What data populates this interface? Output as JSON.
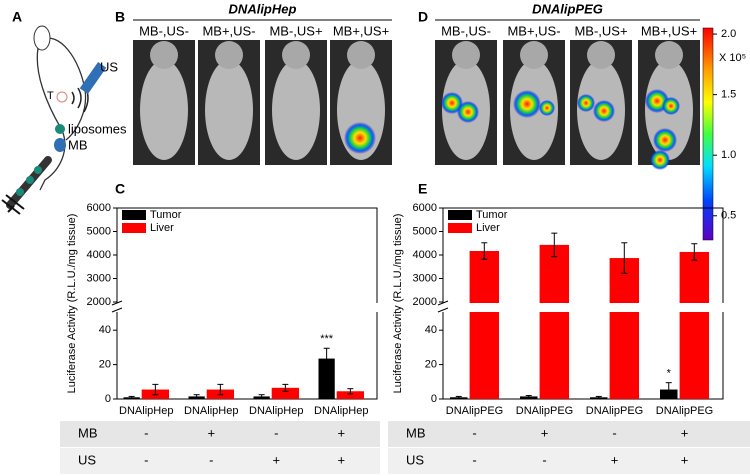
{
  "panel_labels": [
    "A",
    "B",
    "C",
    "D",
    "E"
  ],
  "schematic": {
    "us": "US",
    "tumor": "T",
    "liposomes": "liposomes",
    "mb": "MB"
  },
  "imaging": [
    {
      "title": "DNAlipHep",
      "images": [
        "MB-,US-",
        "MB+,US-",
        "MB-,US+",
        "MB+,US+"
      ]
    },
    {
      "title": "DNAlipPEG",
      "images": [
        "MB-,US-",
        "MB+,US-",
        "MB-,US+",
        "MB+,US+"
      ]
    }
  ],
  "colorbar": {
    "label": "X 10⁵",
    "lim": [
      0.3,
      2.05
    ],
    "ticks": [
      {
        "value": 2,
        "label": "2.0"
      },
      {
        "value": 1.5,
        "label": "1.5"
      },
      {
        "value": 1,
        "label": "1.0"
      },
      {
        "value": 0.5,
        "label": "0.5"
      }
    ]
  },
  "chart_data": [
    {
      "type": "bar",
      "ylabel": "Luciferase Activity (R.L.U./mg tissue)",
      "categories": [
        "DNAlipHep",
        "DNAlipHep",
        "DNAlipHep",
        "DNAlipHep"
      ],
      "series": [
        {
          "name": "Tumor",
          "color": "#000000",
          "values": [
            1,
            1.5,
            1.5,
            23.5
          ],
          "errors": [
            0.5,
            1,
            1,
            6
          ]
        },
        {
          "name": "Liver",
          "color": "#ff0000",
          "values": [
            5.5,
            5.5,
            6.5,
            4.5
          ],
          "errors": [
            3,
            3,
            2,
            1.5
          ]
        }
      ],
      "ylim": [
        0,
        50
      ],
      "yticks": [
        0,
        20,
        40
      ],
      "ylim_upper": [
        2000,
        6000
      ],
      "yticks_upper": [
        2000,
        3000,
        4000,
        5000,
        6000
      ],
      "annotation": "***",
      "legend": "upper left"
    },
    {
      "type": "bar",
      "ylabel": "Luciferase Activity (R.L.U./mg tissue)",
      "categories": [
        "DNAlipPEG",
        "DNAlipPEG",
        "DNAlipPEG",
        "DNAlipPEG"
      ],
      "series": [
        {
          "name": "Tumor",
          "color": "#000000",
          "values": [
            1,
            1.5,
            1,
            5.5
          ],
          "errors": [
            0.5,
            0.5,
            0.5,
            4
          ]
        },
        {
          "name": "Liver",
          "color": "#ff0000",
          "values": [
            4170,
            4430,
            3870,
            4130
          ],
          "errors": [
            350,
            500,
            650,
            350
          ]
        }
      ],
      "ylim": [
        0,
        50
      ],
      "yticks": [
        0,
        20,
        40
      ],
      "ylim_upper": [
        2000,
        6000
      ],
      "yticks_upper": [
        2000,
        3000,
        4000,
        5000,
        6000
      ],
      "annotation": "*",
      "legend": "upper left"
    }
  ],
  "tables": [
    {
      "rows": [
        {
          "label": "MB",
          "cells": [
            "-",
            "+",
            "-",
            "+"
          ]
        },
        {
          "label": "US",
          "cells": [
            "-",
            "-",
            "+",
            "+"
          ]
        }
      ]
    },
    {
      "rows": [
        {
          "label": "MB",
          "cells": [
            "-",
            "+",
            "-",
            "+"
          ]
        },
        {
          "label": "US",
          "cells": [
            "-",
            "-",
            "+",
            "+"
          ]
        }
      ]
    }
  ]
}
